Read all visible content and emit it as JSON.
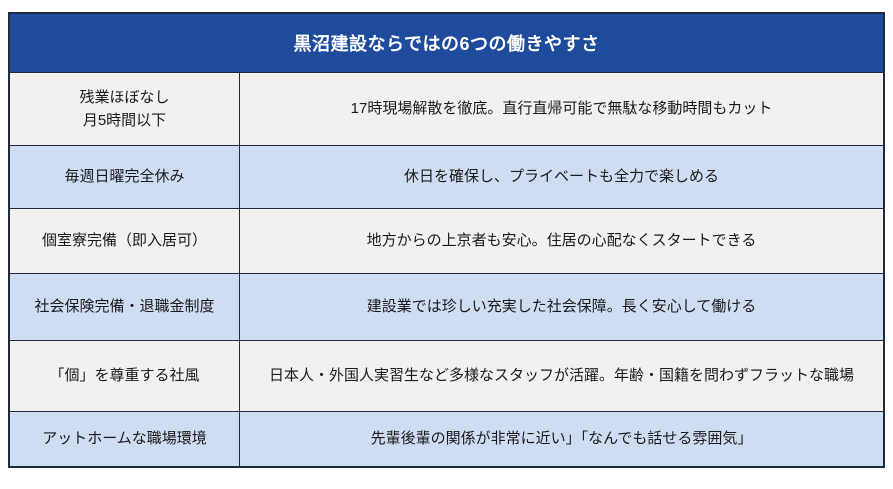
{
  "table": {
    "title": "黒沼建設ならではの6つの働きやすさ",
    "rows": [
      {
        "label": "残業ほぼなし\n月5時間以下",
        "description": "17時現場解散を徹底。直行直帰可能で無駄な移動時間もカット"
      },
      {
        "label": "毎週日曜完全休み",
        "description": "休日を確保し、プライベートも全力で楽しめる"
      },
      {
        "label": "個室寮完備（即入居可）",
        "description": "地方からの上京者も安心。住居の心配なくスタートできる"
      },
      {
        "label": "社会保険完備・退職金制度",
        "description": "建設業では珍しい充実した社会保障。長く安心して働ける"
      },
      {
        "label": "「個」を尊重する社風",
        "description": "日本人・外国人実習生など多様なスタッフが活躍。年齢・国籍を問わずフラットな職場"
      },
      {
        "label": "アットホームな職場環境",
        "description": "先輩後輩の関係が非常に近い」「なんでも話せる雰囲気」"
      }
    ],
    "colors": {
      "header_bg": "#1e4b9c",
      "header_text": "#ffffff",
      "row_blue": "#cfddf3",
      "row_gray": "#f2f1f0",
      "border": "#1f2940",
      "body_text": "#1a1a1a"
    }
  }
}
